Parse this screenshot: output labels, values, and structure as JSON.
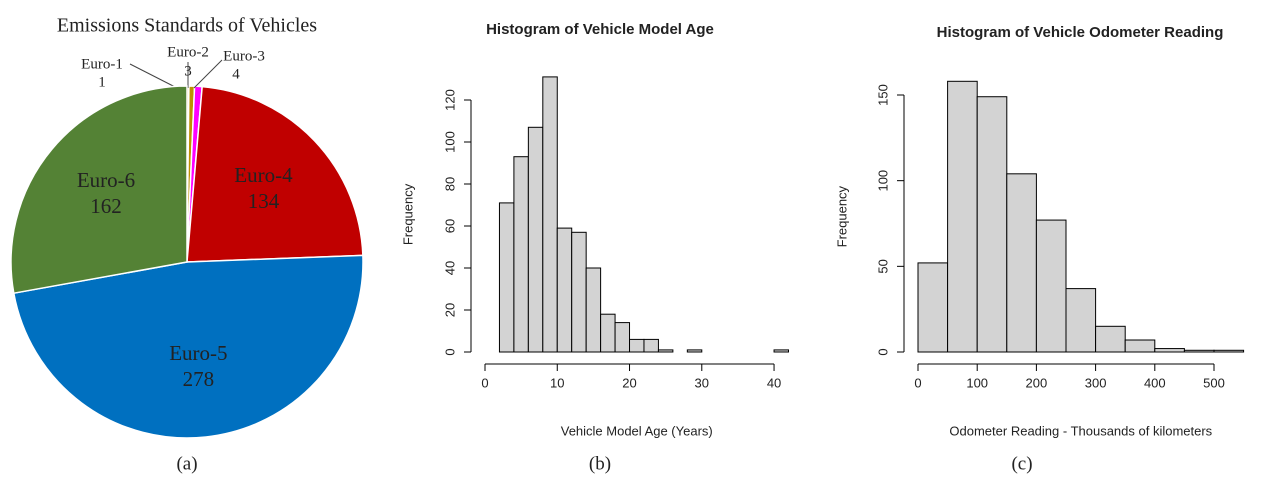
{
  "chart_data": [
    {
      "type": "pie",
      "title": "Emissions Standards of Vehicles",
      "panel_label": "(a)",
      "categories": [
        "Euro-1",
        "Euro-2",
        "Euro-3",
        "Euro-4",
        "Euro-5",
        "Euro-6"
      ],
      "values": [
        1,
        3,
        4,
        134,
        278,
        162
      ],
      "colors": [
        "#e69138",
        "#bf9000",
        "#ff00ff",
        "#c00000",
        "#0070c0",
        "#548235"
      ]
    },
    {
      "type": "histogram",
      "title": "Histogram of Vehicle Model Age",
      "panel_label": "(b)",
      "xlabel": "Vehicle Model Age (Years)",
      "ylabel": "Frequency",
      "bins": [
        2,
        4,
        6,
        8,
        10,
        12,
        14,
        16,
        18,
        20,
        22,
        24,
        26,
        28,
        30,
        32,
        34,
        36,
        38,
        40,
        42
      ],
      "counts": [
        71,
        93,
        107,
        131,
        59,
        57,
        40,
        18,
        14,
        6,
        6,
        1,
        0,
        1,
        0,
        0,
        0,
        0,
        0,
        1
      ],
      "color": "#d3d3d3",
      "xlim": [
        0,
        42
      ],
      "ylim": [
        0,
        131
      ],
      "xticks": [
        0,
        10,
        20,
        30,
        40
      ],
      "yticks": [
        0,
        20,
        40,
        60,
        80,
        100,
        120
      ]
    },
    {
      "type": "histogram",
      "title": "Histogram of Vehicle Odometer Reading",
      "panel_label": "(c)",
      "xlabel": "Odometer Reading - Thousands of kilometers",
      "ylabel": "Frequency",
      "bins": [
        0,
        50,
        100,
        150,
        200,
        250,
        300,
        350,
        400,
        450,
        500,
        550
      ],
      "counts": [
        52,
        158,
        149,
        104,
        77,
        37,
        15,
        7,
        2,
        1,
        1
      ],
      "color": "#d3d3d3",
      "xlim": [
        0,
        550
      ],
      "ylim": [
        0,
        158
      ],
      "xticks": [
        0,
        100,
        200,
        300,
        400,
        500
      ],
      "yticks": [
        0,
        50,
        100,
        150
      ]
    }
  ]
}
